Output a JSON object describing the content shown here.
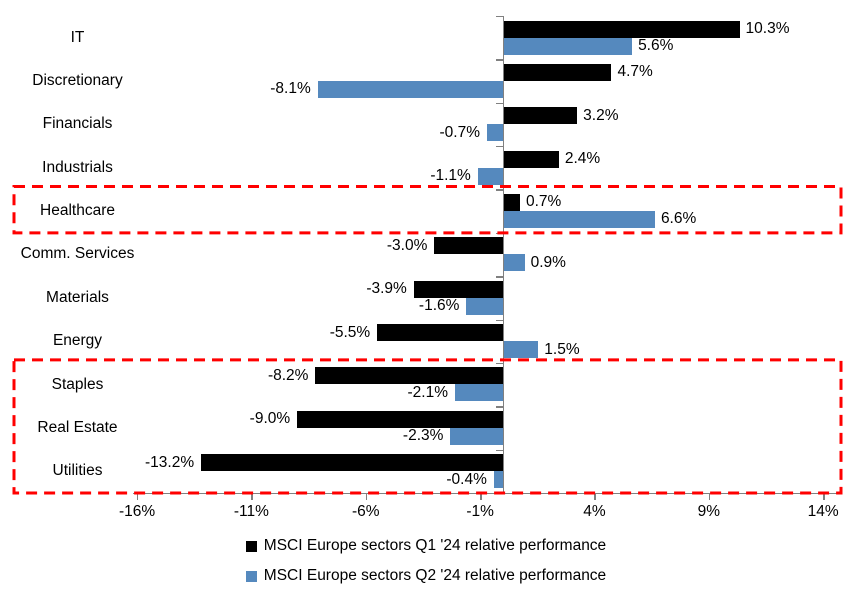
{
  "chart_data": {
    "type": "bar",
    "orientation": "horizontal",
    "title": "",
    "categories": [
      "IT",
      "Discretionary",
      "Financials",
      "Industrials",
      "Healthcare",
      "Comm. Services",
      "Materials",
      "Energy",
      "Staples",
      "Real Estate",
      "Utilities"
    ],
    "series": [
      {
        "name": "MSCI Europe sectors Q1 '24 relative performance",
        "color": "#000000",
        "values": [
          10.3,
          4.7,
          3.2,
          2.4,
          0.7,
          -3.0,
          -3.9,
          -5.5,
          -8.2,
          -9.0,
          -13.2
        ],
        "labels": [
          "10.3%",
          "4.7%",
          "3.2%",
          "2.4%",
          "0.7%",
          "-3.0%",
          "-3.9%",
          "-5.5%",
          "-8.2%",
          "-9.0%",
          "-13.2%"
        ]
      },
      {
        "name": "MSCI Europe sectors Q2 '24 relative performance",
        "color": "#5589BE",
        "values": [
          5.6,
          -8.1,
          -0.7,
          -1.1,
          6.6,
          0.9,
          -1.6,
          1.5,
          -2.1,
          -2.3,
          -0.4
        ],
        "labels": [
          "5.6%",
          "-8.1%",
          "-0.7%",
          "-1.1%",
          "6.6%",
          "0.9%",
          "-1.6%",
          "1.5%",
          "-2.1%",
          "-2.3%",
          "-0.4%"
        ]
      }
    ],
    "x_ticks": [
      "-16%",
      "-11%",
      "-6%",
      "-1%",
      "4%",
      "9%",
      "14%"
    ],
    "x_tick_values": [
      -16,
      -11,
      -6,
      -1,
      4,
      9,
      14
    ],
    "xlim": [
      -16,
      14
    ],
    "value_suffix": "%",
    "axis_color": "#808080",
    "highlight_color": "#FF0000",
    "grid": false,
    "legend_position": "bottom",
    "highlight_boxes": [
      {
        "from": "Healthcare",
        "to": "Healthcare"
      },
      {
        "from": "Staples",
        "to": "Utilities"
      }
    ]
  }
}
